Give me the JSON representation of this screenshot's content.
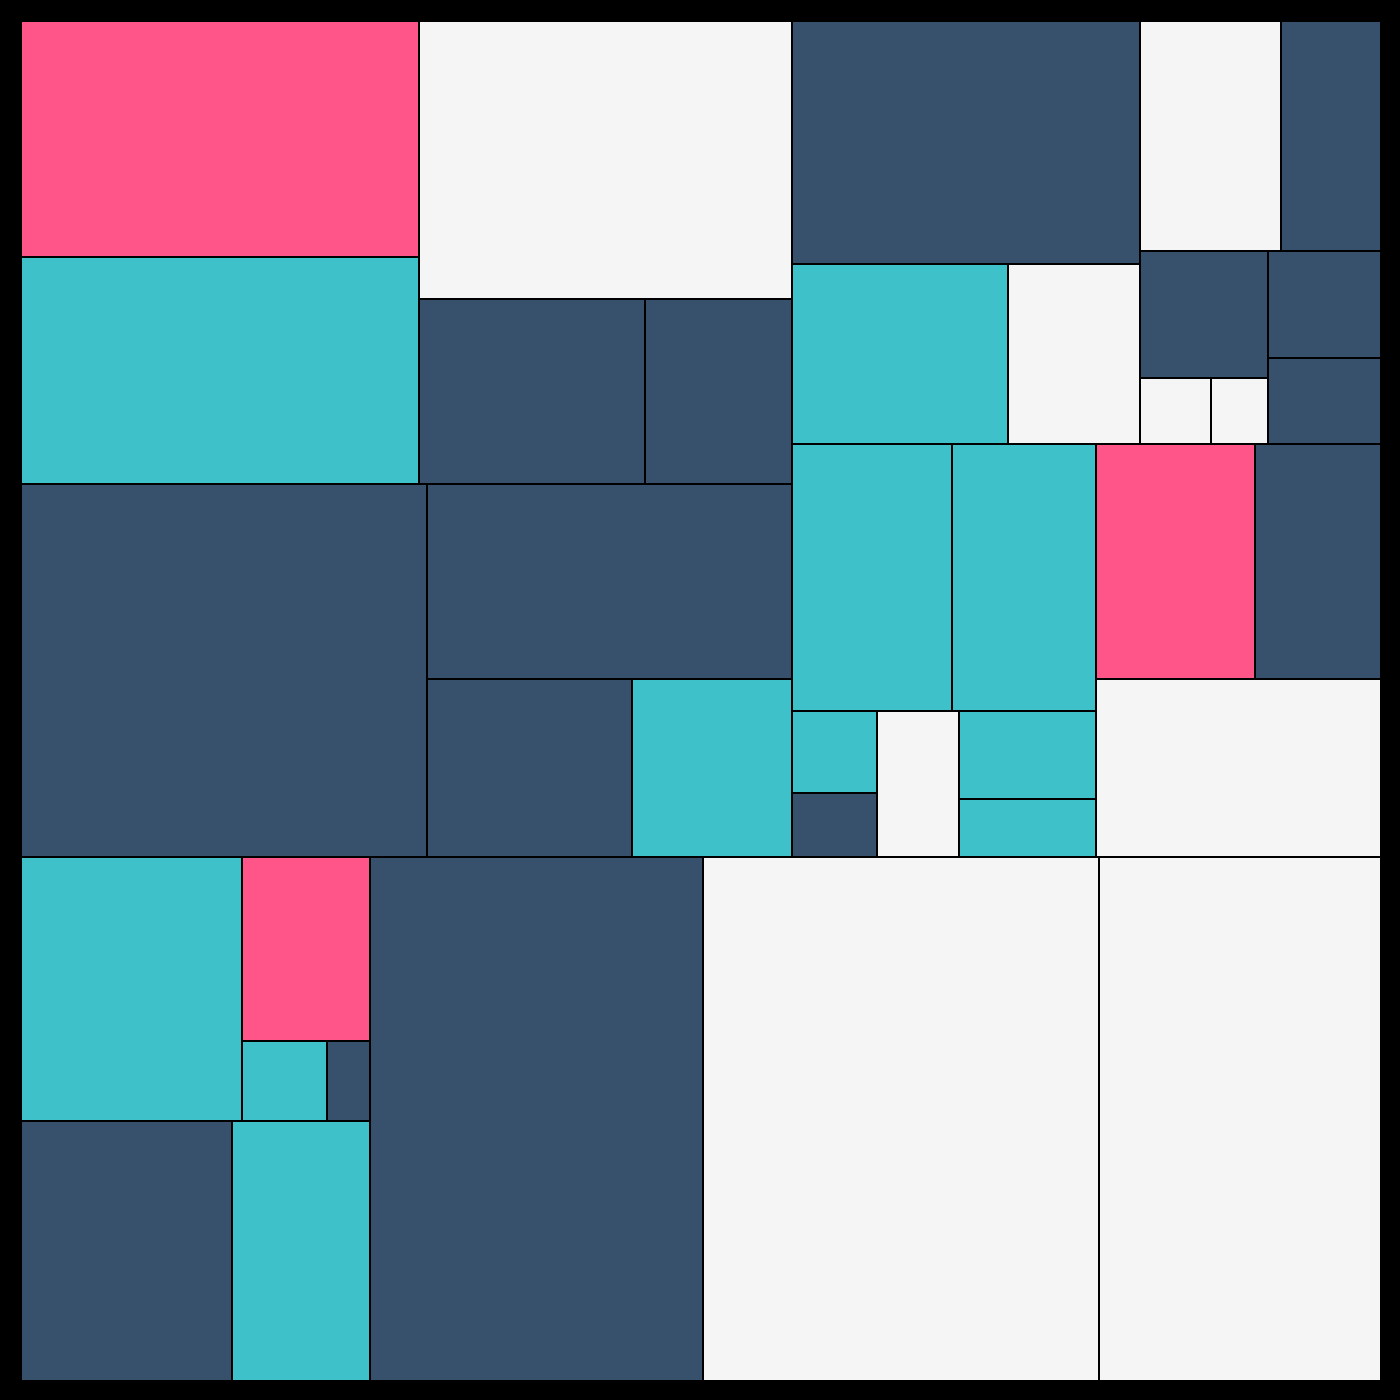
{
  "palette": {
    "frame": "#000000",
    "pink": "#FF5588",
    "teal": "#3FC1C9",
    "navy": "#37506C",
    "white": "#F5F5F5"
  },
  "tiles": [
    {
      "name": "tile-01",
      "color": "pink"
    },
    {
      "name": "tile-02",
      "color": "teal"
    },
    {
      "name": "tile-03",
      "color": "white"
    },
    {
      "name": "tile-04",
      "color": "navy"
    },
    {
      "name": "tile-05",
      "color": "navy"
    },
    {
      "name": "tile-06",
      "color": "navy"
    },
    {
      "name": "tile-07",
      "color": "navy"
    },
    {
      "name": "tile-08",
      "color": "navy"
    },
    {
      "name": "tile-09",
      "color": "teal"
    },
    {
      "name": "tile-10",
      "color": "navy"
    },
    {
      "name": "tile-11",
      "color": "white"
    },
    {
      "name": "tile-12",
      "color": "navy"
    },
    {
      "name": "tile-13",
      "color": "teal"
    },
    {
      "name": "tile-14",
      "color": "white"
    },
    {
      "name": "tile-15",
      "color": "navy"
    },
    {
      "name": "tile-16",
      "color": "navy"
    },
    {
      "name": "tile-17",
      "color": "navy"
    },
    {
      "name": "tile-18",
      "color": "white"
    },
    {
      "name": "tile-19",
      "color": "white"
    },
    {
      "name": "tile-20",
      "color": "teal"
    },
    {
      "name": "tile-21",
      "color": "teal"
    },
    {
      "name": "tile-22",
      "color": "pink"
    },
    {
      "name": "tile-23",
      "color": "navy"
    },
    {
      "name": "tile-24",
      "color": "teal"
    },
    {
      "name": "tile-25",
      "color": "navy"
    },
    {
      "name": "tile-26",
      "color": "white"
    },
    {
      "name": "tile-27",
      "color": "teal"
    },
    {
      "name": "tile-28",
      "color": "teal"
    },
    {
      "name": "tile-29",
      "color": "white"
    },
    {
      "name": "tile-30",
      "color": "teal"
    },
    {
      "name": "tile-31",
      "color": "pink"
    },
    {
      "name": "tile-32",
      "color": "teal"
    },
    {
      "name": "tile-33",
      "color": "navy"
    },
    {
      "name": "tile-34",
      "color": "navy"
    },
    {
      "name": "tile-35",
      "color": "teal"
    },
    {
      "name": "tile-36",
      "color": "navy"
    },
    {
      "name": "tile-37",
      "color": "white"
    },
    {
      "name": "tile-38",
      "color": "white"
    }
  ]
}
